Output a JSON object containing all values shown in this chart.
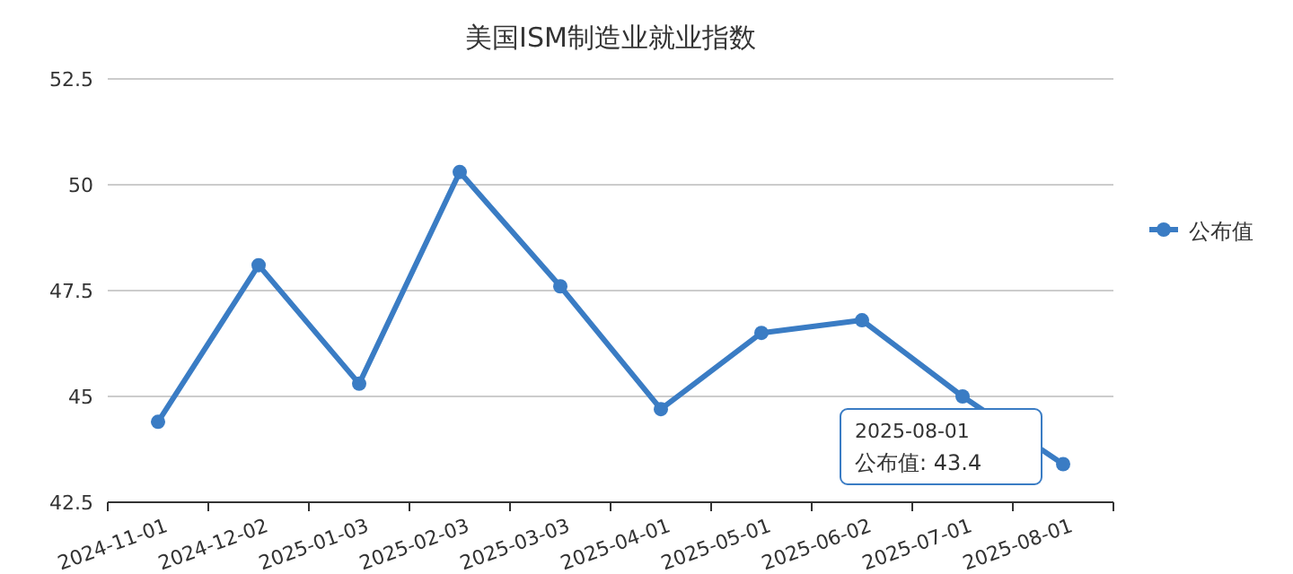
{
  "chart_data": {
    "type": "line",
    "title": "美国ISM制造业就业指数",
    "categories": [
      "2024-11-01",
      "2024-12-02",
      "2025-01-03",
      "2025-02-03",
      "2025-03-03",
      "2025-04-01",
      "2025-05-01",
      "2025-06-02",
      "2025-07-01",
      "2025-08-01"
    ],
    "series": [
      {
        "name": "公布值",
        "color": "#3a7cc4",
        "values": [
          44.4,
          48.1,
          45.3,
          50.3,
          47.6,
          44.7,
          46.5,
          46.8,
          45.0,
          43.4
        ]
      }
    ],
    "ylim": [
      42.5,
      52.5
    ],
    "yticks": [
      42.5,
      45,
      47.5,
      50,
      52.5
    ],
    "grid": "y",
    "legend": "right",
    "marker": "circle",
    "annotations": [
      "2025-08-01\n公布值: 43.4"
    ]
  }
}
